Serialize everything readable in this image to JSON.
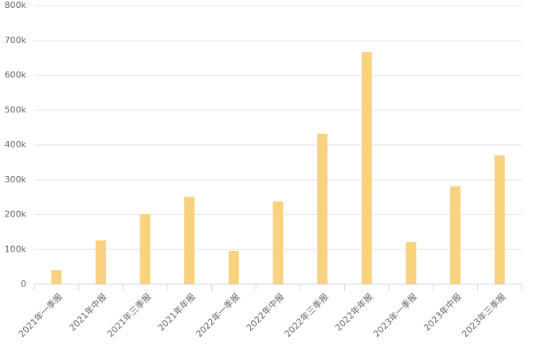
{
  "chart_data": {
    "type": "bar",
    "categories": [
      "2021年一季报",
      "2021年中报",
      "2021年三季报",
      "2021年年报",
      "2022年一季报",
      "2022年中报",
      "2022年三季报",
      "2022年年报",
      "2023年一季报",
      "2023年中报",
      "2023年三季报"
    ],
    "values": [
      41000,
      126000,
      201000,
      251000,
      96000,
      238000,
      432000,
      667000,
      121000,
      281000,
      370000
    ],
    "color": "#f9d27f",
    "ylim": [
      0,
      800000
    ],
    "yticks": [
      0,
      {
        "value": 100000,
        "label": "100k"
      },
      {
        "value": 200000,
        "label": "200k"
      },
      {
        "value": 300000,
        "label": "300k"
      },
      {
        "value": 400000,
        "label": "400k"
      },
      {
        "value": 500000,
        "label": "500k"
      },
      {
        "value": 600000,
        "label": "600k"
      },
      {
        "value": 700000,
        "label": "700k"
      },
      {
        "value": 800000,
        "label": "800k"
      }
    ],
    "grid": true
  }
}
